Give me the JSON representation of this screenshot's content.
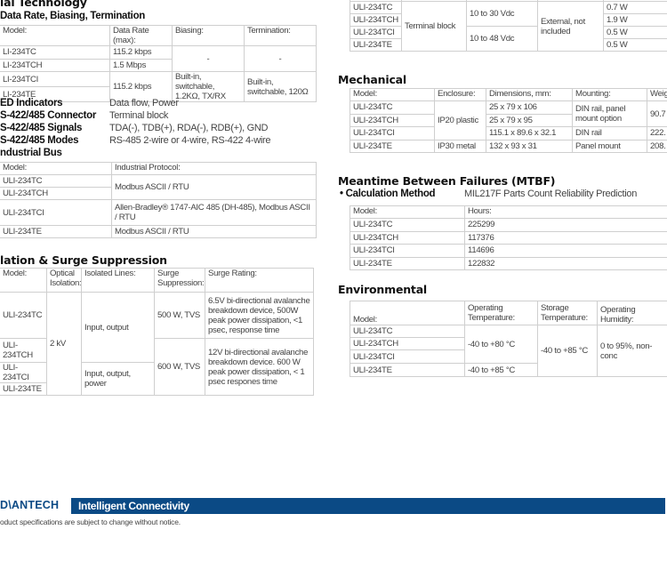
{
  "serial": {
    "heading": "ial Technology",
    "subheading": "Data Rate, Biasing, Termination",
    "rate_table": [
      [
        {
          "t": "Model:"
        },
        {
          "t": "Data Rate (max):"
        },
        {
          "t": "Biasing:"
        },
        {
          "t": "Termination:"
        }
      ],
      [
        {
          "t": "LI-234TC"
        },
        {
          "t": "115.2 kbps"
        },
        {
          "t": "-",
          "rs": 2,
          "c": 1
        },
        {
          "t": "-",
          "rs": 2,
          "c": 1
        }
      ],
      [
        {
          "t": "LI-234TCH"
        },
        {
          "t": "1.5 Mbps"
        }
      ],
      [
        {
          "t": "LI-234TCI"
        },
        {
          "t": "115.2 kbps",
          "rs": 2
        },
        {
          "t": "Built-in, switchable, 1.2KΩ, TX/RX",
          "rs": 2
        },
        {
          "t": "Built-in, switchable, 120Ω",
          "rs": 2
        }
      ],
      [
        {
          "t": "LI-234TE"
        }
      ]
    ],
    "specs": [
      {
        "label": "ED Indicators",
        "value": "Data flow, Power"
      },
      {
        "label": "S-422/485 Connector",
        "value": "Terminal block"
      },
      {
        "label": "S-422/485 Signals",
        "value": "TDA(-), TDB(+), RDA(-), RDB(+), GND"
      },
      {
        "label": "S-422/485 Modes",
        "value": "RS-485 2-wire or 4-wire, RS-422 4-wire"
      },
      {
        "label": "ndustrial Bus",
        "value": ""
      }
    ],
    "bus_table": [
      [
        {
          "t": "Model:"
        },
        {
          "t": "Industrial Protocol:"
        }
      ],
      [
        {
          "t": "ULI-234TC"
        },
        {
          "t": "Modbus ASCII / RTU",
          "rs": 2
        }
      ],
      [
        {
          "t": "ULI-234TCH"
        }
      ],
      [
        {
          "t": "ULI-234TCI"
        },
        {
          "t": "Allen-Bradley® 1747-AIC 485 (DH-485), Modbus ASCII / RTU"
        }
      ],
      [
        {
          "t": "ULI-234TE"
        },
        {
          "t": "Modbus ASCII / RTU"
        }
      ]
    ]
  },
  "isolation": {
    "heading": "lation & Surge Suppression",
    "table": [
      [
        {
          "t": "Model:"
        },
        {
          "t": "Optical Isolation:"
        },
        {
          "t": "Isolated Lines:"
        },
        {
          "t": "Surge Suppression:"
        },
        {
          "t": "Surge Rating:"
        }
      ],
      [
        {
          "t": "ULI-234TC"
        },
        {
          "t": "2 kV",
          "rs": 4
        },
        {
          "t": "Input, output",
          "rs": 2
        },
        {
          "t": "500 W, TVS"
        },
        {
          "t": "6.5V bi-directional avalanche breakdown device, 500W peak power dissipation, <1 psec, response time"
        }
      ],
      [
        {
          "t": "ULI-234TCH"
        },
        {
          "t": "600 W, TVS",
          "rs": 3
        },
        {
          "t": "12V bi-directional avalanche breakdown device. 600 W peak power dissipation, < 1 psec respones time",
          "rs": 3
        }
      ],
      [
        {
          "t": "ULI-234TCI"
        },
        {
          "t": "Input, output, power",
          "rs": 2
        }
      ],
      [
        {
          "t": "ULI-234TE"
        }
      ]
    ]
  },
  "power": {
    "table": [
      [
        {
          "t": ""
        },
        {
          "t": ""
        },
        {
          "t": ""
        },
        {
          "t": ""
        },
        {
          "t": ""
        }
      ],
      [
        {
          "t": "ULI-234TC"
        },
        {
          "t": "Terminal block",
          "rs": 4
        },
        {
          "t": "10 to 30 Vdc",
          "rs": 2
        },
        {
          "t": "External, not included",
          "rs": 4
        },
        {
          "t": "0.7 W"
        }
      ],
      [
        {
          "t": "ULI-234TCH"
        },
        {
          "t": "1.9 W"
        }
      ],
      [
        {
          "t": "ULI-234TCI"
        },
        {
          "t": "10 to 48 Vdc",
          "rs": 2
        },
        {
          "t": "0.5 W"
        }
      ],
      [
        {
          "t": "ULI-234TE"
        },
        {
          "t": "0.5 W"
        }
      ]
    ]
  },
  "mechanical": {
    "heading": "Mechanical",
    "table": [
      [
        {
          "t": "Model:"
        },
        {
          "t": "Enclosure:"
        },
        {
          "t": "Dimensions, mm:"
        },
        {
          "t": "Mounting:"
        },
        {
          "t": "Weig"
        }
      ],
      [
        {
          "t": "ULI-234TC"
        },
        {
          "t": "IP20 plastic",
          "rs": 3
        },
        {
          "t": "25 x 79 x 106"
        },
        {
          "t": "DIN rail, panel mount option",
          "rs": 2
        },
        {
          "t": "90.7",
          "rs": 2
        }
      ],
      [
        {
          "t": "ULI-234TCH"
        },
        {
          "t": "25 x 79 x 95"
        }
      ],
      [
        {
          "t": "ULI-234TCI"
        },
        {
          "t": "115.1 x 89.6 x 32.1"
        },
        {
          "t": "DIN rail"
        },
        {
          "t": "222."
        }
      ],
      [
        {
          "t": "ULI-234TE"
        },
        {
          "t": "IP30 metal"
        },
        {
          "t": "132 x 93 x 31"
        },
        {
          "t": "Panel mount"
        },
        {
          "t": "208."
        }
      ]
    ]
  },
  "mtbf": {
    "heading": "Meantime Between Failures (MTBF)",
    "method_label": "Calculation Method",
    "method_value": "MIL217F Parts Count Reliability Prediction",
    "table": [
      [
        {
          "t": "Model:"
        },
        {
          "t": "Hours:"
        }
      ],
      [
        {
          "t": "ULI-234TC"
        },
        {
          "t": "225299"
        }
      ],
      [
        {
          "t": "ULI-234TCH"
        },
        {
          "t": "117376"
        }
      ],
      [
        {
          "t": "ULI-234TCI"
        },
        {
          "t": "114696"
        }
      ],
      [
        {
          "t": "ULI-234TE"
        },
        {
          "t": "122832"
        }
      ]
    ]
  },
  "environmental": {
    "heading": "Environmental",
    "table": [
      [
        {
          "t": "Model:",
          "b": 1
        },
        {
          "t": "Operating Temperature:"
        },
        {
          "t": "Storage Temperature:"
        },
        {
          "t": "Operating Humidity:",
          "b": 1
        }
      ],
      [
        {
          "t": "ULI-234TC"
        },
        {
          "t": "-40 to +80 °C",
          "rs": 3
        },
        {
          "t": "-40 to +85 °C",
          "rs": 4
        },
        {
          "t": "0 to 95%, non-conc",
          "rs": 4
        }
      ],
      [
        {
          "t": "ULI-234TCH"
        }
      ],
      [
        {
          "t": "ULI-234TCI"
        }
      ],
      [
        {
          "t": "ULI-234TE"
        },
        {
          "t": "-40 to +85 °C"
        }
      ]
    ]
  },
  "footer": {
    "logo": "D\\ANTECH",
    "tagline": "Intelligent Connectivity",
    "note": "oduct specifications are subject to change without notice.",
    "brand_color": "#0b4a85"
  }
}
